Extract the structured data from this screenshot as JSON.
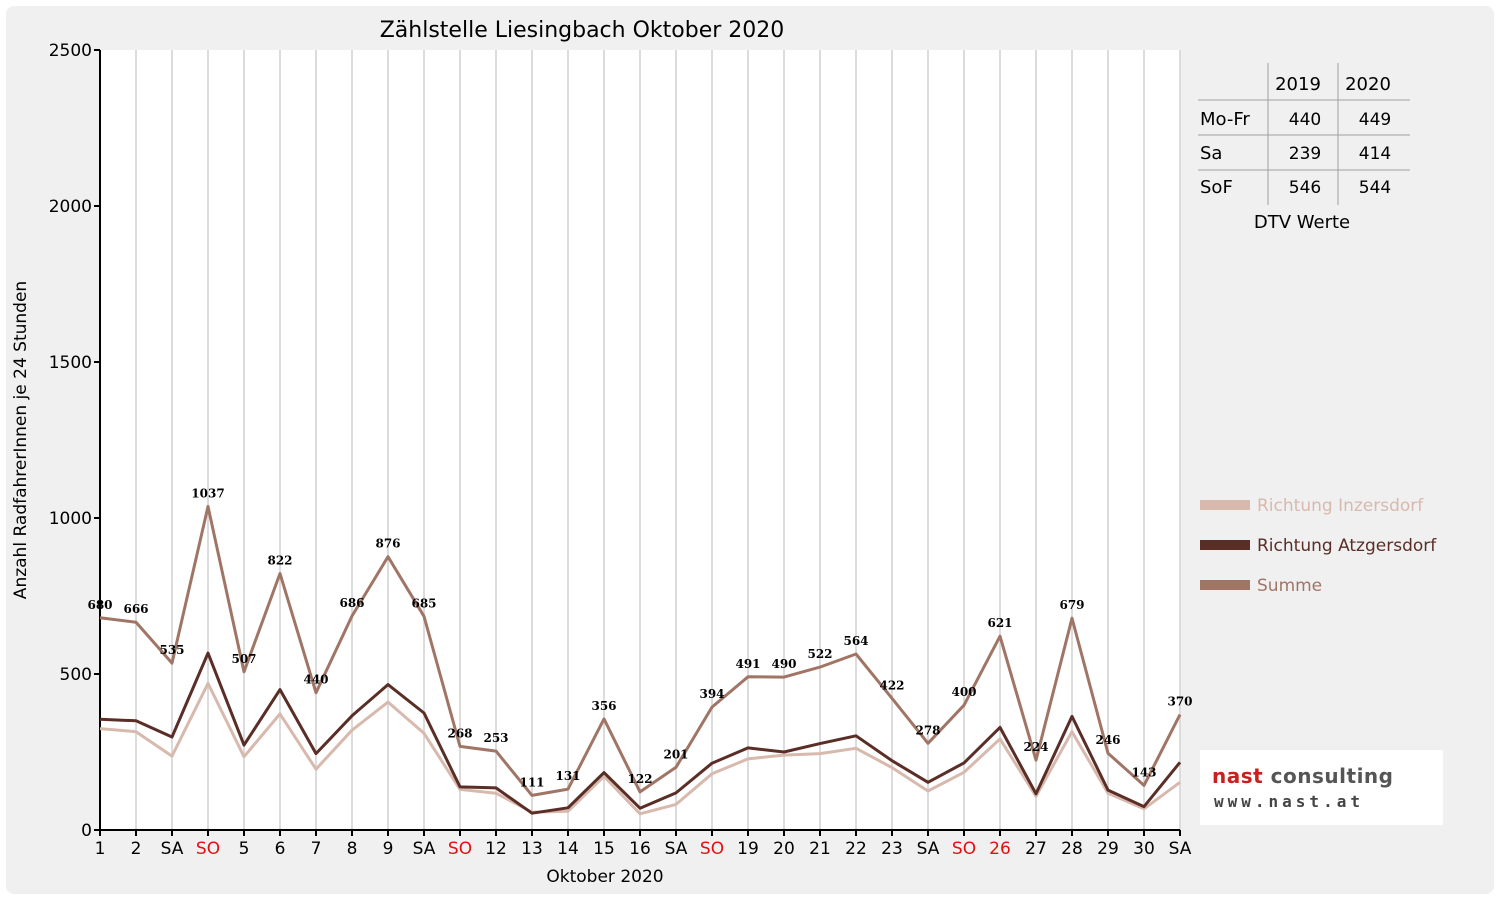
{
  "chart_data": {
    "type": "line",
    "title": "Zählstelle Liesingbach Oktober 2020",
    "xlabel": "Oktober 2020",
    "ylabel": "Anzahl RadfahrerInnen je 24 Stunden",
    "ylim": [
      0,
      2500
    ],
    "yticks": [
      0,
      500,
      1000,
      1500,
      2000,
      2500
    ],
    "grid": true,
    "legend_position": "right",
    "categories": [
      "1",
      "2",
      "SA",
      "SO",
      "5",
      "6",
      "7",
      "8",
      "9",
      "SA",
      "SO",
      "12",
      "13",
      "14",
      "15",
      "16",
      "SA",
      "SO",
      "19",
      "20",
      "21",
      "22",
      "23",
      "SA",
      "SO",
      "26",
      "27",
      "28",
      "29",
      "30",
      "SA"
    ],
    "category_colors": [
      "#000000",
      "#000000",
      "#000000",
      "#e01010",
      "#000000",
      "#000000",
      "#000000",
      "#000000",
      "#000000",
      "#000000",
      "#e01010",
      "#000000",
      "#000000",
      "#000000",
      "#000000",
      "#000000",
      "#000000",
      "#e01010",
      "#000000",
      "#000000",
      "#000000",
      "#000000",
      "#000000",
      "#000000",
      "#e01010",
      "#e01010",
      "#000000",
      "#000000",
      "#000000",
      "#000000",
      "#000000"
    ],
    "series": [
      {
        "name": "Richtung Inzersdorf",
        "color": "#d8b9ad",
        "values": [
          325,
          315,
          237,
          470,
          235,
          372,
          195,
          320,
          410,
          310,
          130,
          118,
          57,
          60,
          172,
          52,
          82,
          180,
          228,
          240,
          245,
          262,
          200,
          125,
          185,
          292,
          108,
          315,
          118,
          68,
          153
        ]
      },
      {
        "name": "Richtung Atzgersdorf",
        "color": "#5a2e26",
        "values": [
          355,
          350,
          298,
          567,
          272,
          450,
          245,
          366,
          466,
          375,
          138,
          135,
          54,
          71,
          184,
          70,
          119,
          214,
          263,
          250,
          277,
          302,
          222,
          153,
          215,
          329,
          116,
          364,
          128,
          75,
          217
        ]
      },
      {
        "name": "Summe",
        "color": "#a07566",
        "values": [
          680,
          666,
          535,
          1037,
          507,
          822,
          440,
          686,
          876,
          685,
          268,
          253,
          111,
          131,
          356,
          122,
          201,
          394,
          491,
          490,
          522,
          564,
          422,
          278,
          400,
          621,
          224,
          679,
          246,
          143,
          370
        ]
      }
    ],
    "data_labels": [
      680,
      666,
      535,
      1037,
      507,
      822,
      440,
      686,
      876,
      685,
      268,
      253,
      111,
      131,
      356,
      122,
      201,
      394,
      491,
      490,
      522,
      564,
      422,
      278,
      400,
      621,
      224,
      679,
      246,
      143,
      370
    ]
  },
  "dtv_table": {
    "caption": "DTV Werte",
    "columns": [
      "2019",
      "2020"
    ],
    "rows": [
      {
        "label": "Mo-Fr",
        "values": [
          "440",
          "449"
        ]
      },
      {
        "label": "Sa",
        "values": [
          "239",
          "414"
        ]
      },
      {
        "label": "SoF",
        "values": [
          "546",
          "544"
        ]
      }
    ]
  },
  "logo": {
    "name_part1": "nast",
    "name_part2": "consulting",
    "url": "www.nast.at"
  }
}
